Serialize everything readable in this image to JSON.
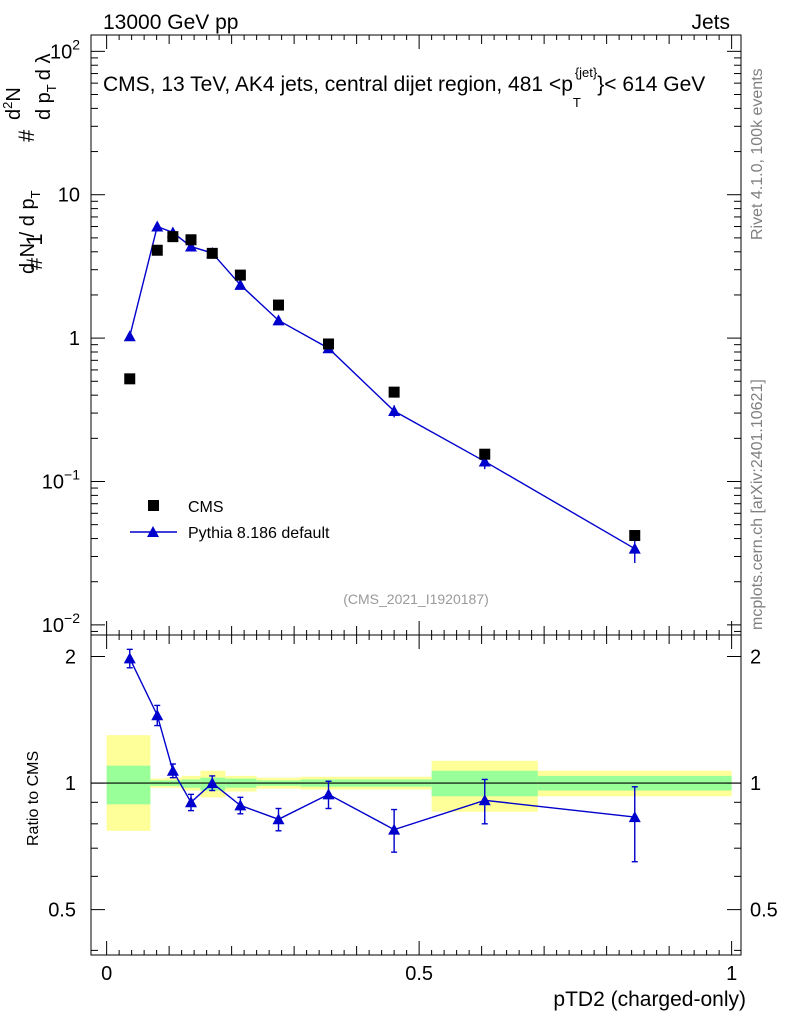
{
  "header": {
    "left": "13000 GeV pp",
    "right": "Jets"
  },
  "side_labels": {
    "rivet": "Rivet 4.1.0,  100k events",
    "mcplots": "mcplots.cern.ch [arXiv:2401.10621]"
  },
  "chart_data": [
    {
      "type": "scatter",
      "title": "CMS, 13 TeV, AK4 jets, central dijet region, 481 <p",
      "title_sub": "T",
      "title_sup": "{jet}",
      "title_tail": "}< 614 GeV",
      "ylabel_parts": [
        "#",
        "1",
        "d N / d p",
        "T",
        "#",
        "d",
        "N",
        "2",
        "d p",
        "T",
        "d λ"
      ],
      "xlim": [
        -0.025,
        1.015
      ],
      "ylim": [
        0.0085,
        130
      ],
      "yscale": "log",
      "y_ticks": [
        {
          "v": 100,
          "base": "10",
          "exp": "2"
        },
        {
          "v": 10,
          "base": "10",
          "exp": ""
        },
        {
          "v": 1,
          "base": "1",
          "exp": ""
        },
        {
          "v": 0.1,
          "base": "10",
          "exp": "−1"
        },
        {
          "v": 0.01,
          "base": "10",
          "exp": "−2"
        }
      ],
      "watermark": "(CMS_2021_I1920187)",
      "legend": {
        "position": "bottom-left",
        "entries": [
          "CMS",
          "Pythia 8.186 default"
        ]
      },
      "series": [
        {
          "name": "CMS",
          "color": "#000000",
          "marker": "square",
          "x": [
            0.037,
            0.081,
            0.106,
            0.135,
            0.169,
            0.214,
            0.275,
            0.355,
            0.46,
            0.605,
            0.845
          ],
          "y": [
            0.52,
            4.1,
            5.1,
            4.85,
            3.9,
            2.75,
            1.7,
            0.91,
            0.42,
            0.155,
            0.042
          ]
        },
        {
          "name": "Pythia 8.186 default",
          "color": "#0000cc",
          "marker": "triangle",
          "x": [
            0.037,
            0.081,
            0.106,
            0.135,
            0.169,
            0.214,
            0.275,
            0.355,
            0.46,
            0.605,
            0.845
          ],
          "y": [
            1.03,
            6.0,
            5.45,
            4.35,
            3.92,
            2.35,
            1.33,
            0.85,
            0.31,
            0.138,
            0.034
          ],
          "err_lo": [
            0.0,
            0.0,
            0.0,
            0.0,
            0.0,
            0.0,
            0.0,
            0.0,
            0.03,
            0.016,
            0.007
          ],
          "err_hi": [
            0.0,
            0.0,
            0.0,
            0.0,
            0.0,
            0.0,
            0.0,
            0.0,
            0.03,
            0.016,
            0.007
          ]
        }
      ]
    },
    {
      "type": "scatter",
      "ylabel": "Ratio to CMS",
      "xlabel": "pTD2 (charged-only)",
      "xlim": [
        -0.025,
        1.015
      ],
      "ylim": [
        0.39,
        2.25
      ],
      "yscale": "log",
      "x_ticks": [
        {
          "v": 0,
          "label": "0"
        },
        {
          "v": 0.5,
          "label": "0.5"
        },
        {
          "v": 1,
          "label": "1"
        }
      ],
      "y_ticks": [
        {
          "v": 2,
          "label": "2"
        },
        {
          "v": 1,
          "label": "1"
        },
        {
          "v": 0.5,
          "label": "0.5"
        }
      ],
      "reference_line": 1,
      "bands": [
        {
          "x0": 0.0,
          "x1": 0.07,
          "y_lo": 0.89,
          "y_hi": 1.1,
          "y2_lo": 0.77,
          "y2_hi": 1.3
        },
        {
          "x0": 0.07,
          "x1": 0.095,
          "y_lo": 0.985,
          "y_hi": 1.015,
          "y2_lo": 0.975,
          "y2_hi": 1.025
        },
        {
          "x0": 0.095,
          "x1": 0.12,
          "y_lo": 0.985,
          "y_hi": 1.015,
          "y2_lo": 0.975,
          "y2_hi": 1.03
        },
        {
          "x0": 0.12,
          "x1": 0.15,
          "y_lo": 0.975,
          "y_hi": 1.02,
          "y2_lo": 0.96,
          "y2_hi": 1.04
        },
        {
          "x0": 0.15,
          "x1": 0.19,
          "y_lo": 0.96,
          "y_hi": 1.03,
          "y2_lo": 0.925,
          "y2_hi": 1.07
        },
        {
          "x0": 0.19,
          "x1": 0.24,
          "y_lo": 0.975,
          "y_hi": 1.025,
          "y2_lo": 0.955,
          "y2_hi": 1.04
        },
        {
          "x0": 0.24,
          "x1": 0.31,
          "y_lo": 0.985,
          "y_hi": 1.015,
          "y2_lo": 0.97,
          "y2_hi": 1.03
        },
        {
          "x0": 0.31,
          "x1": 0.52,
          "y_lo": 0.98,
          "y_hi": 1.02,
          "y2_lo": 0.965,
          "y2_hi": 1.035
        },
        {
          "x0": 0.52,
          "x1": 0.69,
          "y_lo": 0.93,
          "y_hi": 1.07,
          "y2_lo": 0.855,
          "y2_hi": 1.13
        },
        {
          "x0": 0.69,
          "x1": 1.0,
          "y_lo": 0.96,
          "y_hi": 1.04,
          "y2_lo": 0.93,
          "y2_hi": 1.07
        }
      ],
      "series": [
        {
          "name": "Pythia 8.186 default / CMS",
          "color": "#0000cc",
          "marker": "triangle",
          "x": [
            0.037,
            0.081,
            0.106,
            0.135,
            0.169,
            0.214,
            0.275,
            0.355,
            0.46,
            0.605,
            0.845
          ],
          "y": [
            1.98,
            1.45,
            1.07,
            0.9,
            1.0,
            0.885,
            0.82,
            0.94,
            0.775,
            0.91,
            0.83
          ],
          "err_lo": [
            0.1,
            0.08,
            0.04,
            0.04,
            0.04,
            0.04,
            0.05,
            0.07,
            0.09,
            0.11,
            0.18
          ],
          "err_hi": [
            0.1,
            0.08,
            0.04,
            0.04,
            0.04,
            0.04,
            0.05,
            0.07,
            0.09,
            0.11,
            0.15
          ]
        }
      ]
    }
  ]
}
